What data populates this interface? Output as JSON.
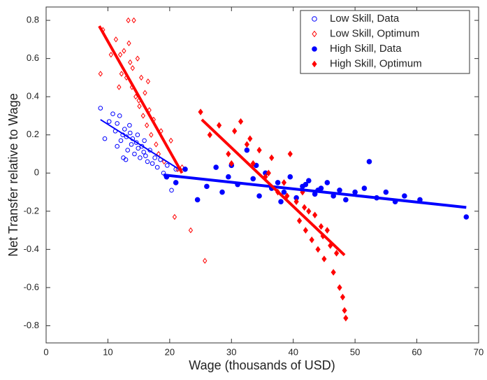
{
  "chart_data": {
    "type": "scatter",
    "xlabel": "Wage (thousands of USD)",
    "ylabel": "Net Transfer relative to Wage",
    "xlim": [
      0,
      70
    ],
    "xticks": [
      0,
      10,
      20,
      30,
      40,
      50,
      60,
      70
    ],
    "ylim": [
      -0.89,
      0.87
    ],
    "yticks": [
      -0.8,
      -0.6,
      -0.4,
      -0.2,
      0,
      0.2,
      0.4,
      0.6,
      0.8
    ],
    "grid": false,
    "legend": "upper right",
    "series": [
      {
        "name": "Low Skill, Data",
        "color": "#0000ff",
        "marker": "circle",
        "filled": false,
        "x": [
          8.8,
          9.5,
          10.2,
          10.8,
          11.2,
          11.5,
          11.9,
          12.1,
          12.4,
          12.7,
          13.0,
          13.2,
          13.5,
          13.8,
          14.0,
          14.3,
          14.6,
          14.9,
          15.2,
          15.5,
          15.8,
          16.1,
          16.4,
          16.8,
          17.2,
          17.6,
          18.0,
          18.5,
          19.0,
          19.6,
          20.3,
          21.0,
          12.5,
          13.6,
          14.8,
          15.9,
          11.5,
          12.9
        ],
        "values": [
          0.34,
          0.18,
          0.27,
          0.31,
          0.22,
          0.26,
          0.3,
          0.17,
          0.2,
          0.23,
          0.19,
          0.12,
          0.25,
          0.15,
          0.18,
          0.1,
          0.16,
          0.13,
          0.08,
          0.14,
          0.11,
          0.09,
          0.06,
          0.12,
          0.05,
          0.08,
          0.03,
          0.07,
          0.0,
          0.04,
          -0.09,
          0.02,
          0.08,
          0.21,
          0.2,
          0.17,
          0.14,
          0.07
        ],
        "fit": {
          "x": [
            8.8,
            21.5
          ],
          "values": [
            0.28,
            0.02
          ],
          "width": 2
        }
      },
      {
        "name": "Low Skill, Optimum",
        "color": "#ff0000",
        "marker": "diamond",
        "filled": false,
        "x": [
          8.8,
          9.2,
          10.5,
          11.3,
          11.8,
          12.2,
          12.6,
          13.0,
          13.3,
          13.6,
          13.9,
          14.2,
          14.5,
          14.8,
          15.1,
          15.4,
          15.7,
          16.0,
          16.3,
          16.7,
          17.0,
          17.4,
          17.8,
          18.2,
          18.6,
          19.1,
          19.6,
          20.2,
          20.8,
          21.3,
          22.0,
          23.4,
          25.7,
          13.4,
          14.0,
          15.0,
          12.0,
          16.5
        ],
        "values": [
          0.52,
          0.75,
          0.62,
          0.7,
          0.45,
          0.52,
          0.64,
          0.5,
          0.8,
          0.58,
          0.45,
          0.8,
          0.4,
          0.6,
          0.35,
          0.5,
          0.3,
          0.42,
          0.25,
          0.33,
          0.2,
          0.28,
          0.15,
          0.1,
          0.22,
          0.06,
          -0.02,
          0.17,
          -0.23,
          0.02,
          0.03,
          -0.3,
          -0.46,
          0.68,
          0.55,
          0.38,
          0.62,
          0.48
        ],
        "fit": {
          "x": [
            8.6,
            22.0
          ],
          "values": [
            0.77,
            0.0
          ],
          "width": 4
        }
      },
      {
        "name": "High Skill, Data",
        "color": "#0000ff",
        "marker": "circle",
        "filled": true,
        "x": [
          19.5,
          21.0,
          22.5,
          24.5,
          26.0,
          27.5,
          28.5,
          30.0,
          31.0,
          32.5,
          33.5,
          34.5,
          35.5,
          36.5,
          37.5,
          38.5,
          39.5,
          40.5,
          41.5,
          42.5,
          43.5,
          44.5,
          45.5,
          46.5,
          47.5,
          48.5,
          50.0,
          51.5,
          52.3,
          53.5,
          55.0,
          56.5,
          58.0,
          60.5,
          68.0,
          34.0,
          38.0,
          42.0,
          29.5,
          44.0
        ],
        "values": [
          -0.02,
          -0.05,
          0.02,
          -0.14,
          -0.07,
          0.03,
          -0.1,
          0.04,
          -0.06,
          0.12,
          -0.03,
          -0.12,
          0.0,
          -0.08,
          -0.05,
          -0.1,
          -0.02,
          -0.13,
          -0.07,
          -0.04,
          -0.11,
          -0.08,
          -0.05,
          -0.12,
          -0.09,
          -0.14,
          -0.1,
          -0.08,
          0.06,
          -0.13,
          -0.1,
          -0.15,
          -0.12,
          -0.14,
          -0.23,
          0.04,
          -0.15,
          -0.06,
          -0.02,
          -0.09
        ],
        "fit": {
          "x": [
            19.0,
            68.0
          ],
          "values": [
            -0.01,
            -0.18
          ],
          "width": 4
        }
      },
      {
        "name": "High Skill, Optimum",
        "color": "#ff0000",
        "marker": "diamond",
        "filled": true,
        "x": [
          25.0,
          26.5,
          28.0,
          29.5,
          30.5,
          31.5,
          32.5,
          33.5,
          34.5,
          35.5,
          36.5,
          37.5,
          38.5,
          39.5,
          40.5,
          41.0,
          41.5,
          42.0,
          42.5,
          43.0,
          43.5,
          44.0,
          44.5,
          45.0,
          45.5,
          46.0,
          46.5,
          47.0,
          47.5,
          48.0,
          48.3,
          48.5,
          33.0,
          36.0,
          39.0,
          30.0,
          41.8,
          44.8
        ],
        "values": [
          0.32,
          0.2,
          0.25,
          0.1,
          0.22,
          0.27,
          0.15,
          0.05,
          0.12,
          -0.02,
          0.08,
          -0.1,
          -0.05,
          0.1,
          -0.15,
          -0.25,
          -0.1,
          -0.3,
          -0.2,
          -0.35,
          -0.22,
          -0.4,
          -0.28,
          -0.45,
          -0.3,
          -0.38,
          -0.52,
          -0.42,
          -0.6,
          -0.65,
          -0.72,
          -0.76,
          0.18,
          0.0,
          -0.12,
          0.05,
          -0.18,
          -0.33
        ],
        "fit": {
          "x": [
            25.2,
            48.3
          ],
          "values": [
            0.28,
            -0.43
          ],
          "width": 4
        }
      }
    ]
  }
}
